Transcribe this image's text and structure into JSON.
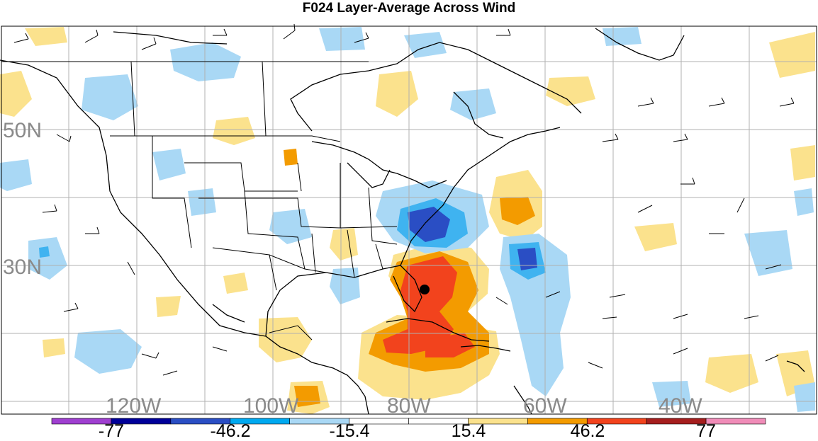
{
  "title": "F024 Layer-Average Across Wind",
  "map": {
    "latitude_labels": [
      "50N",
      "30N"
    ],
    "longitude_labels": [
      "120W",
      "100W",
      "80W",
      "60W",
      "40W"
    ],
    "center_marker": "storm-center-dot"
  },
  "colorbar": {
    "colors": [
      "#9f3fd0",
      "#000099",
      "#2a4ec4",
      "#00a9f0",
      "#a9d8f5",
      "#ffffff",
      "#ffffff",
      "#fbe28d",
      "#f39b00",
      "#f2431d",
      "#a51e1e",
      "#f08cb8"
    ],
    "labels": [
      "-77",
      "-46.2",
      "-15.4",
      "15.4",
      "46.2",
      "77"
    ]
  },
  "colors": {
    "light_blue": "#a9d8f5",
    "medium_blue": "#3fb3f0",
    "dark_blue": "#2a4ec4",
    "light_yellow": "#fbe28d",
    "orange": "#f39b00",
    "red_orange": "#f2431d",
    "gridline": "#b0b0b0"
  }
}
